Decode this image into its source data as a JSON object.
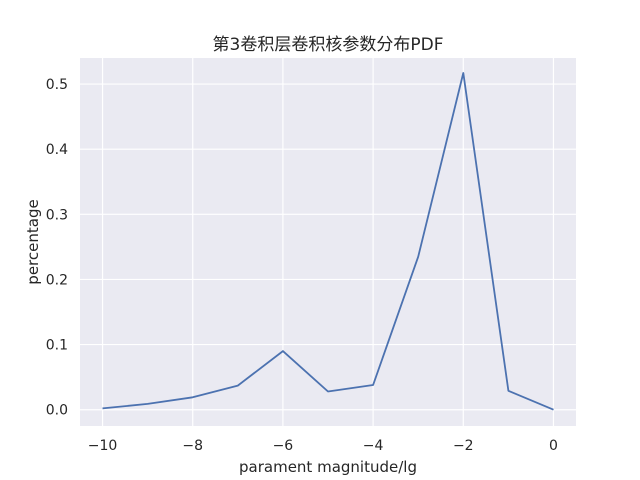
{
  "chart_data": {
    "type": "line",
    "title": "第3卷积层卷积核参数分布PDF",
    "xlabel": "parament magnitude/lg",
    "ylabel": "percentage",
    "x": [
      -10,
      -9,
      -8,
      -7,
      -6,
      -5,
      -4,
      -3,
      -2,
      -1,
      0
    ],
    "series": [
      {
        "values": [
          0.002,
          0.009,
          0.019,
          0.037,
          0.09,
          0.028,
          0.038,
          0.235,
          0.517,
          0.029,
          0.0
        ]
      }
    ],
    "xlim": [
      -10.5,
      0.5
    ],
    "ylim": [
      -0.025,
      0.54
    ],
    "xticks": [
      -10,
      -8,
      -6,
      -4,
      -2,
      0
    ],
    "yticks": [
      0.0,
      0.1,
      0.2,
      0.3,
      0.4,
      0.5
    ],
    "xtick_labels": [
      "−10",
      "−8",
      "−6",
      "−4",
      "−2",
      "0"
    ],
    "ytick_labels": [
      "0.0",
      "0.1",
      "0.2",
      "0.3",
      "0.4",
      "0.5"
    ],
    "grid": true,
    "colors": {
      "background": "#eaeaf2",
      "grid": "#ffffff",
      "line": "#4c72b0"
    }
  }
}
